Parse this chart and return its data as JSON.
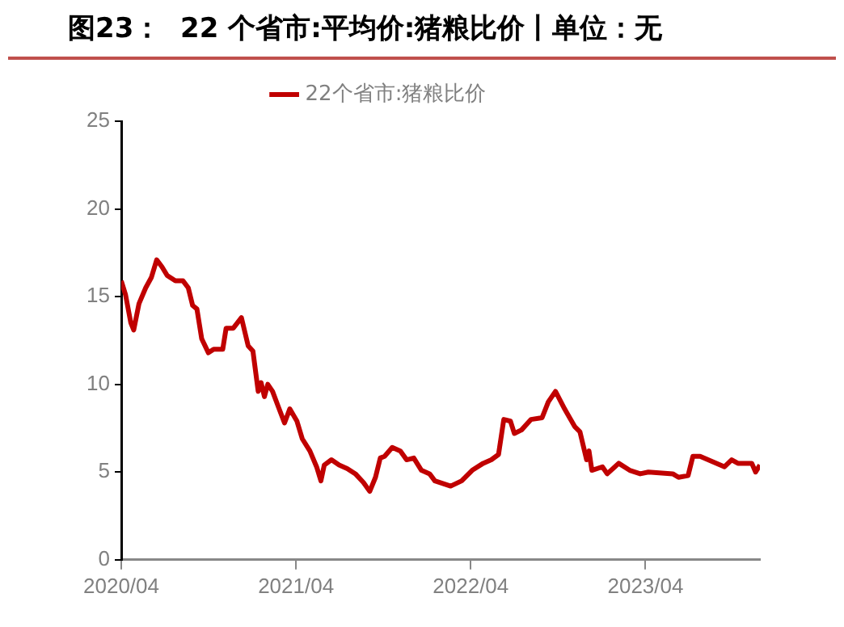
{
  "chart_data": {
    "type": "line",
    "title": "图23：  22 个省市:平均价:猪粮比价丨单位：无",
    "x": [
      "2020-04-01",
      "2020-04-10",
      "2020-04-21",
      "2020-04-27",
      "2020-05-08",
      "2020-05-22",
      "2020-06-03",
      "2020-06-14",
      "2020-06-25",
      "2020-07-06",
      "2020-07-23",
      "2020-08-08",
      "2020-08-19",
      "2020-08-28",
      "2020-09-06",
      "2020-09-16",
      "2020-09-30",
      "2020-10-11",
      "2020-10-30",
      "2020-11-06",
      "2020-11-21",
      "2020-12-08",
      "2020-12-22",
      "2021-01-01",
      "2021-01-12",
      "2021-01-18",
      "2021-01-25",
      "2021-02-01",
      "2021-02-11",
      "2021-02-22",
      "2021-03-08",
      "2021-03-19",
      "2021-04-03",
      "2021-04-14",
      "2021-04-30",
      "2021-05-14",
      "2021-05-23",
      "2021-05-30",
      "2021-06-14",
      "2021-06-30",
      "2021-07-17",
      "2021-08-03",
      "2021-08-20",
      "2021-09-02",
      "2021-09-14",
      "2021-09-24",
      "2021-10-03",
      "2021-10-19",
      "2021-11-05",
      "2021-11-18",
      "2021-12-03",
      "2021-12-19",
      "2022-01-05",
      "2022-01-16",
      "2022-02-18",
      "2022-03-13",
      "2022-04-04",
      "2022-04-27",
      "2022-05-14",
      "2022-05-29",
      "2022-06-09",
      "2022-06-23",
      "2022-07-01",
      "2022-07-16",
      "2022-08-05",
      "2022-08-28",
      "2022-09-10",
      "2022-09-25",
      "2022-10-14",
      "2022-11-04",
      "2022-11-15",
      "2022-11-29",
      "2022-12-04",
      "2022-12-10",
      "2023-01-01",
      "2023-01-11",
      "2023-02-04",
      "2023-02-27",
      "2023-03-21",
      "2023-04-07",
      "2023-05-28",
      "2023-06-09",
      "2023-06-29",
      "2023-07-09",
      "2023-07-24",
      "2023-09-13",
      "2023-09-28",
      "2023-10-11",
      "2023-11-09",
      "2023-11-17",
      "2023-11-26"
    ],
    "series": [
      {
        "name": "22个省市:猪粮比价",
        "color": "#c00000",
        "values": [
          15.9,
          15.1,
          13.5,
          13.1,
          14.6,
          15.5,
          16.1,
          17.1,
          16.7,
          16.2,
          15.9,
          15.9,
          15.5,
          14.5,
          14.3,
          12.6,
          11.8,
          12.0,
          12.0,
          13.2,
          13.2,
          13.8,
          12.2,
          11.9,
          9.6,
          10.1,
          9.3,
          10.0,
          9.6,
          8.8,
          7.8,
          8.6,
          7.9,
          6.9,
          6.2,
          5.3,
          4.5,
          5.4,
          5.7,
          5.4,
          5.2,
          4.9,
          4.4,
          3.9,
          4.7,
          5.8,
          5.9,
          6.4,
          6.2,
          5.7,
          5.8,
          5.1,
          4.9,
          4.5,
          4.2,
          4.5,
          5.1,
          5.5,
          5.7,
          6.0,
          8.0,
          7.9,
          7.2,
          7.4,
          8.0,
          8.1,
          9.0,
          9.6,
          8.6,
          7.6,
          7.3,
          5.7,
          6.2,
          5.1,
          5.3,
          4.9,
          5.5,
          5.1,
          4.9,
          5.0,
          4.9,
          4.7,
          4.8,
          5.9,
          5.9,
          5.3,
          5.7,
          5.5,
          5.5,
          5.0,
          5.4
        ]
      }
    ],
    "xlim": [
      "2020-04-01",
      "2023-11-26"
    ],
    "xticks": [
      {
        "value": "2020-04",
        "label": "2020/04"
      },
      {
        "value": "2021-04",
        "label": "2021/04"
      },
      {
        "value": "2022-04",
        "label": "2022/04"
      },
      {
        "value": "2023-04",
        "label": "2023/04"
      }
    ],
    "ylim": [
      0,
      25
    ],
    "yticks": [
      0,
      5,
      10,
      15,
      20,
      25
    ],
    "grid": false,
    "legend": "top",
    "marker": "none",
    "line_style": "solid"
  }
}
